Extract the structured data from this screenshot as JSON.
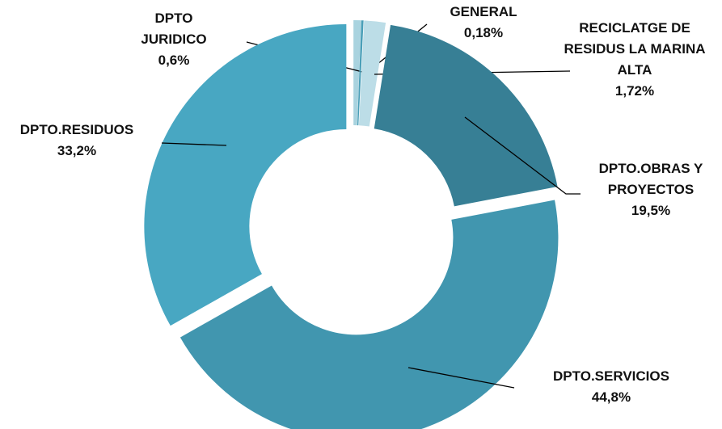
{
  "chart_data": {
    "type": "donut",
    "categories": [
      "DPTO JURIDICO",
      "GENERAL",
      "RECICLATGE DE RESIDUS LA MARINA ALTA",
      "DPTO.OBRAS Y PROYECTOS",
      "DPTO.SERVICIOS",
      "DPTO.RESIDUOS"
    ],
    "values": [
      0.6,
      0.18,
      1.72,
      19.5,
      44.8,
      33.2
    ],
    "value_labels": [
      "0,6%",
      "0,18%",
      "1,72%",
      "19,5%",
      "44,8%",
      "33,2%"
    ],
    "colors": [
      "#a9d3df",
      "#4a9fb8",
      "#bcdde7",
      "#377f95",
      "#4196af",
      "#48a7c2"
    ]
  }
}
